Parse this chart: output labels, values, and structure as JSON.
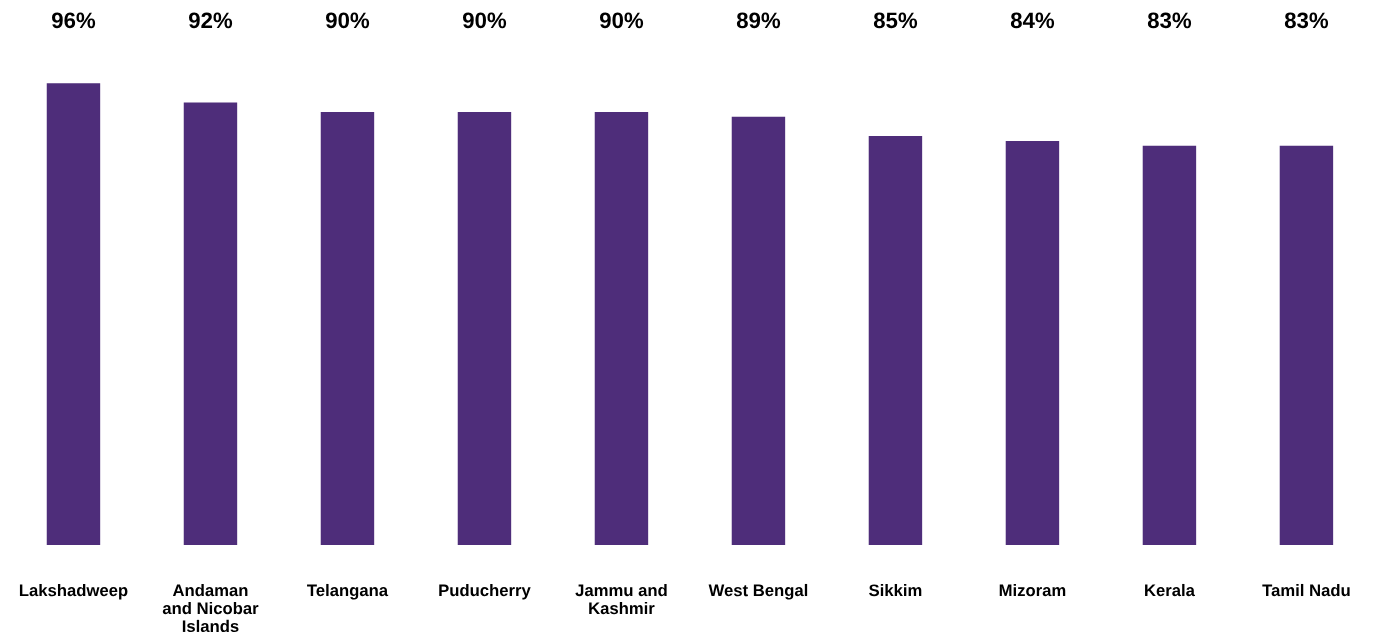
{
  "chart_data": {
    "type": "bar",
    "categories": [
      "Lakshadweep",
      "Andaman\nand Nicobar\nIslands",
      "Telangana",
      "Puducherry",
      "Jammu and\nKashmir",
      "West Bengal",
      "Sikkim",
      "Mizoram",
      "Kerala",
      "Tamil Nadu"
    ],
    "values": [
      96,
      92,
      90,
      90,
      90,
      89,
      85,
      84,
      83,
      83
    ],
    "value_labels": [
      "96%",
      "92%",
      "90%",
      "90%",
      "90%",
      "89%",
      "85%",
      "84%",
      "83%",
      "83%"
    ],
    "color": "#4e2d7a",
    "grid": false,
    "legend": false,
    "tick_labels": "x"
  }
}
